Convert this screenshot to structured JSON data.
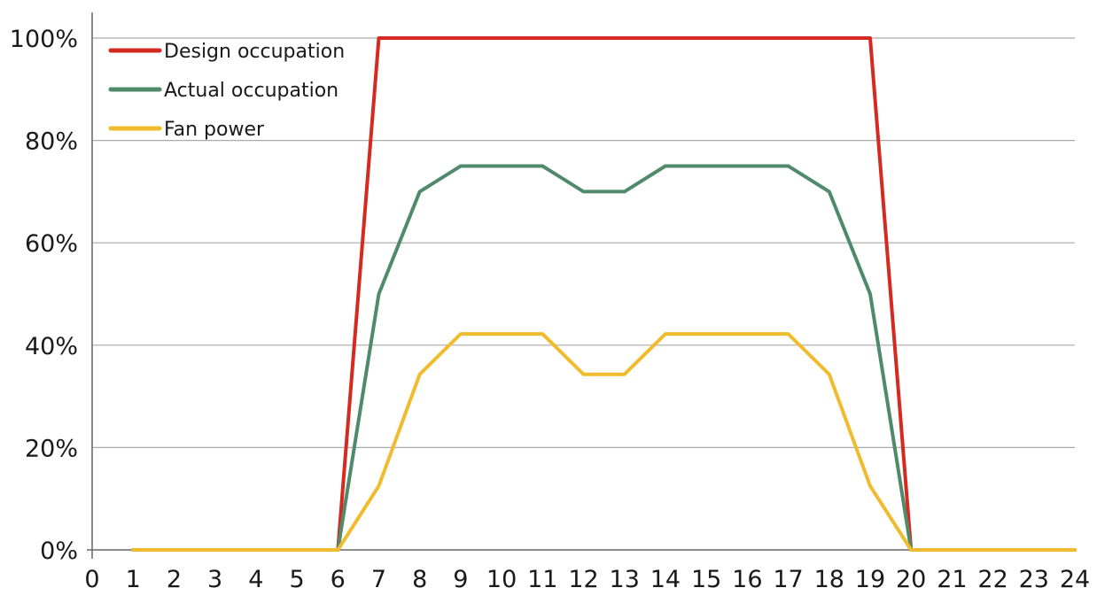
{
  "chart_data": {
    "type": "line",
    "title": "",
    "xlabel": "",
    "ylabel": "",
    "x": [
      0,
      1,
      2,
      3,
      4,
      5,
      6,
      7,
      8,
      9,
      10,
      11,
      12,
      13,
      14,
      15,
      16,
      17,
      18,
      19,
      20,
      21,
      22,
      23,
      24
    ],
    "x_tick_labels": [
      "0",
      "1",
      "2",
      "3",
      "4",
      "5",
      "6",
      "7",
      "8",
      "9",
      "10",
      "11",
      "12",
      "13",
      "14",
      "15",
      "16",
      "17",
      "18",
      "19",
      "20",
      "21",
      "22",
      "23",
      "24"
    ],
    "y_tick_values": [
      0,
      20,
      40,
      60,
      80,
      100
    ],
    "y_tick_labels": [
      "0%",
      "20%",
      "40%",
      "60%",
      "80%",
      "100%"
    ],
    "xlim": [
      0,
      24
    ],
    "ylim": [
      0,
      100
    ],
    "grid": "horizontal",
    "legend_position": "top-left",
    "series": [
      {
        "name": "Design occupation",
        "color": "#d42a20",
        "x": [
          1,
          2,
          3,
          4,
          5,
          6,
          7,
          8,
          9,
          10,
          11,
          12,
          13,
          14,
          15,
          16,
          17,
          18,
          19,
          20,
          21,
          22,
          23,
          24
        ],
        "values": [
          0,
          0,
          0,
          0,
          0,
          0,
          100,
          100,
          100,
          100,
          100,
          100,
          100,
          100,
          100,
          100,
          100,
          100,
          100,
          0,
          0,
          0,
          0,
          0
        ]
      },
      {
        "name": "Actual occupation",
        "color": "#4f8a6b",
        "x": [
          1,
          2,
          3,
          4,
          5,
          6,
          7,
          8,
          9,
          10,
          11,
          12,
          13,
          14,
          15,
          16,
          17,
          18,
          19,
          20,
          21,
          22,
          23,
          24
        ],
        "values": [
          0,
          0,
          0,
          0,
          0,
          0,
          50,
          70,
          75,
          75,
          75,
          70,
          70,
          75,
          75,
          75,
          75,
          70,
          50,
          0,
          0,
          0,
          0,
          0
        ]
      },
      {
        "name": "Fan power",
        "color": "#f0bb2c",
        "x": [
          1,
          2,
          3,
          4,
          5,
          6,
          7,
          8,
          9,
          10,
          11,
          12,
          13,
          14,
          15,
          16,
          17,
          18,
          19,
          20,
          21,
          22,
          23,
          24
        ],
        "values": [
          0,
          0,
          0,
          0,
          0,
          0,
          12.5,
          34.3,
          42.2,
          42.2,
          42.2,
          34.3,
          34.3,
          42.2,
          42.2,
          42.2,
          42.2,
          34.3,
          12.5,
          0,
          0,
          0,
          0,
          0
        ]
      }
    ]
  }
}
